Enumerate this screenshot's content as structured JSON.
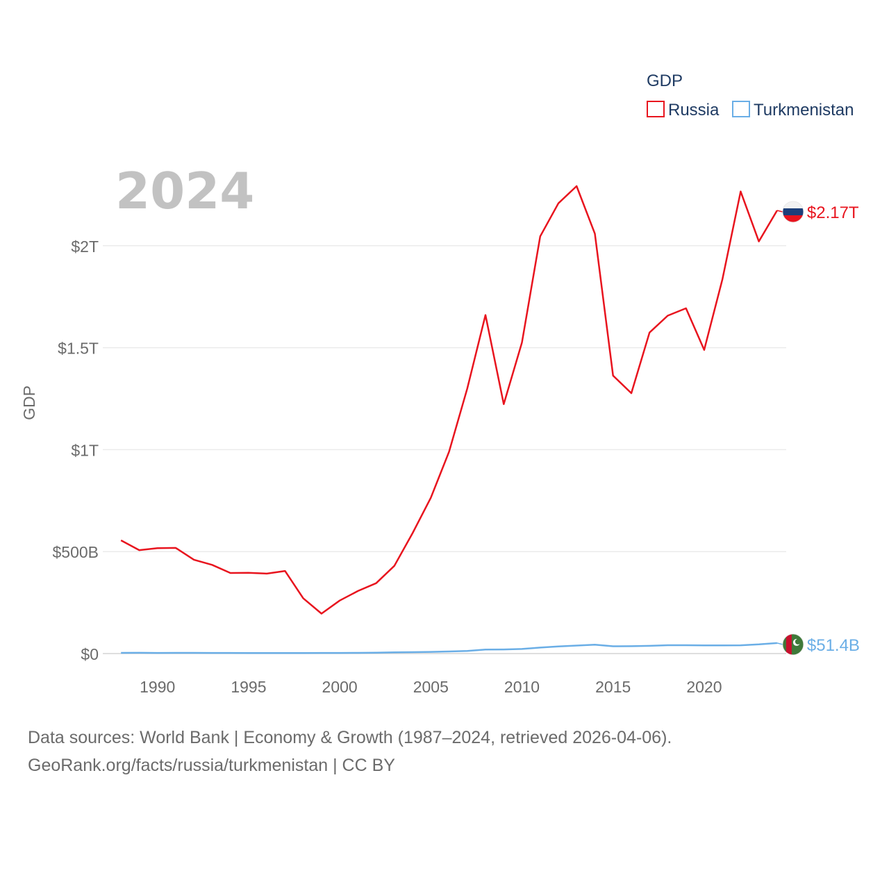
{
  "chart_data": {
    "type": "line",
    "year_label": "2024",
    "ylabel": "GDP",
    "xlabel": "",
    "legend": {
      "title": "GDP",
      "placement": "top-right"
    },
    "x_range": [
      1987,
      2024.5
    ],
    "ylim": [
      0,
      2350000000000
    ],
    "y_ticks": [
      {
        "value": 0,
        "label": "$0"
      },
      {
        "value": 500000000000,
        "label": "$500B"
      },
      {
        "value": 1000000000000,
        "label": "$1T"
      },
      {
        "value": 1500000000000,
        "label": "$1.5T"
      },
      {
        "value": 2000000000000,
        "label": "$2T"
      }
    ],
    "x_ticks": [
      {
        "value": 1990,
        "label": "1990"
      },
      {
        "value": 1995,
        "label": "1995"
      },
      {
        "value": 2000,
        "label": "2000"
      },
      {
        "value": 2005,
        "label": "2005"
      },
      {
        "value": 2010,
        "label": "2010"
      },
      {
        "value": 2015,
        "label": "2015"
      },
      {
        "value": 2020,
        "label": "2020"
      }
    ],
    "series": [
      {
        "name": "Russia",
        "color": "#e8141e",
        "end_label": "$2.17T",
        "flag_colors": [
          "#f2f2f2",
          "#1c3f7a",
          "#e8141e"
        ],
        "points": [
          [
            1988,
            555000000000
          ],
          [
            1989,
            507000000000
          ],
          [
            1990,
            517000000000
          ],
          [
            1991,
            518000000000
          ],
          [
            1992,
            460000000000
          ],
          [
            1993,
            435000000000
          ],
          [
            1994,
            395000000000
          ],
          [
            1995,
            396000000000
          ],
          [
            1996,
            392000000000
          ],
          [
            1997,
            405000000000
          ],
          [
            1998,
            271000000000
          ],
          [
            1999,
            196000000000
          ],
          [
            2000,
            260000000000
          ],
          [
            2001,
            307000000000
          ],
          [
            2002,
            345000000000
          ],
          [
            2003,
            430000000000
          ],
          [
            2004,
            591000000000
          ],
          [
            2005,
            764000000000
          ],
          [
            2006,
            990000000000
          ],
          [
            2007,
            1300000000000
          ],
          [
            2008,
            1660000000000
          ],
          [
            2009,
            1223000000000
          ],
          [
            2010,
            1525000000000
          ],
          [
            2011,
            2046000000000
          ],
          [
            2012,
            2208000000000
          ],
          [
            2013,
            2292000000000
          ],
          [
            2014,
            2059000000000
          ],
          [
            2015,
            1363000000000
          ],
          [
            2016,
            1277000000000
          ],
          [
            2017,
            1574000000000
          ],
          [
            2018,
            1657000000000
          ],
          [
            2019,
            1693000000000
          ],
          [
            2020,
            1489000000000
          ],
          [
            2021,
            1836000000000
          ],
          [
            2022,
            2266000000000
          ],
          [
            2023,
            2021000000000
          ],
          [
            2024,
            2173000000000
          ]
        ]
      },
      {
        "name": "Turkmenistan",
        "color": "#6aaee6",
        "end_label": "$51.4B",
        "flag_colors": [
          "#3f7a3a",
          "#c8102e",
          "#ffffff"
        ],
        "points": [
          [
            1988,
            3500000000
          ],
          [
            1989,
            3600000000
          ],
          [
            1990,
            3200000000
          ],
          [
            1991,
            3300000000
          ],
          [
            1992,
            3300000000
          ],
          [
            1993,
            3200000000
          ],
          [
            1994,
            3100000000
          ],
          [
            1995,
            2500000000
          ],
          [
            1996,
            2400000000
          ],
          [
            1997,
            2500000000
          ],
          [
            1998,
            2600000000
          ],
          [
            1999,
            2900000000
          ],
          [
            2000,
            2900000000
          ],
          [
            2001,
            3500000000
          ],
          [
            2002,
            4500000000
          ],
          [
            2003,
            5900000000
          ],
          [
            2004,
            6800000000
          ],
          [
            2005,
            8100000000
          ],
          [
            2006,
            10300000000
          ],
          [
            2007,
            12700000000
          ],
          [
            2008,
            19300000000
          ],
          [
            2009,
            20200000000
          ],
          [
            2010,
            22600000000
          ],
          [
            2011,
            29200000000
          ],
          [
            2012,
            35200000000
          ],
          [
            2013,
            39200000000
          ],
          [
            2014,
            43500000000
          ],
          [
            2015,
            35800000000
          ],
          [
            2016,
            36200000000
          ],
          [
            2017,
            37900000000
          ],
          [
            2018,
            40800000000
          ],
          [
            2019,
            41000000000
          ],
          [
            2020,
            40000000000
          ],
          [
            2021,
            40000000000
          ],
          [
            2022,
            40500000000
          ],
          [
            2023,
            45000000000
          ],
          [
            2024,
            51400000000
          ]
        ]
      }
    ]
  },
  "footer": {
    "line1": "Data sources: World Bank | Economy & Growth (1987–2024, retrieved 2026-04-06).",
    "line2": "GeoRank.org/facts/russia/turkmenistan | CC BY"
  }
}
